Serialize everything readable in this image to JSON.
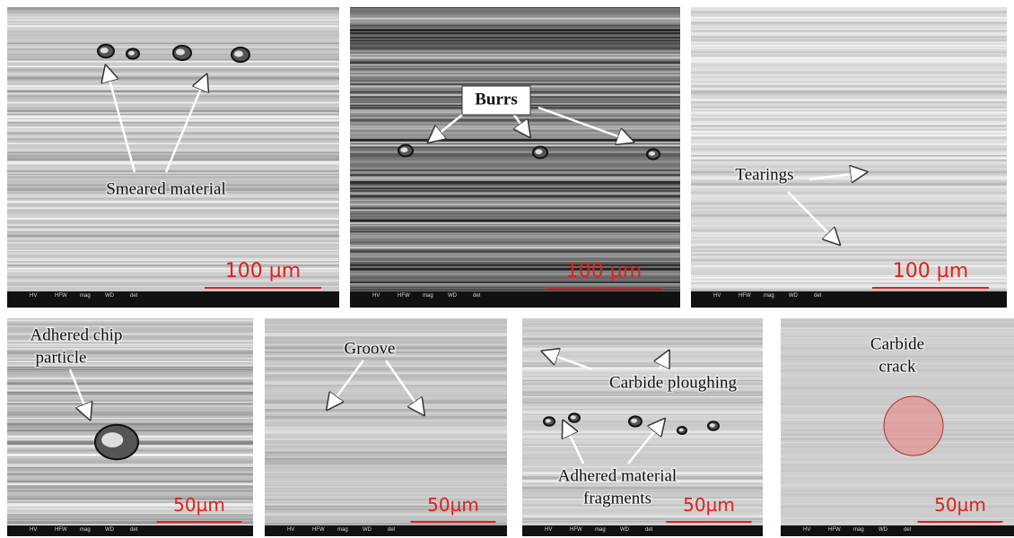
{
  "panels": [
    {
      "scale": "100 µm",
      "annotations": [
        {
          "lines": [
            "Smeared material"
          ]
        }
      ]
    },
    {
      "scale": "100 µm",
      "annotations": [
        {
          "lines": [
            "Burrs"
          ]
        }
      ]
    },
    {
      "scale": "100 µm",
      "annotations": [
        {
          "lines": [
            "Tearings"
          ]
        }
      ]
    },
    {
      "scale": "50µm",
      "annotations": [
        {
          "lines": [
            "Adhered chip",
            "particle"
          ]
        }
      ]
    },
    {
      "scale": "50µm",
      "annotations": [
        {
          "lines": [
            "Groove"
          ]
        }
      ]
    },
    {
      "scale": "50µm",
      "annotations": [
        {
          "lines": [
            "Carbide ploughing"
          ]
        },
        {
          "lines": [
            "Adhered material",
            "fragments"
          ]
        }
      ]
    },
    {
      "scale": "50µm",
      "annotations": [
        {
          "lines": [
            "Carbide",
            "crack"
          ]
        }
      ]
    }
  ],
  "info_bar": [
    "HV",
    "HFW",
    "mag",
    "WD",
    "det"
  ]
}
